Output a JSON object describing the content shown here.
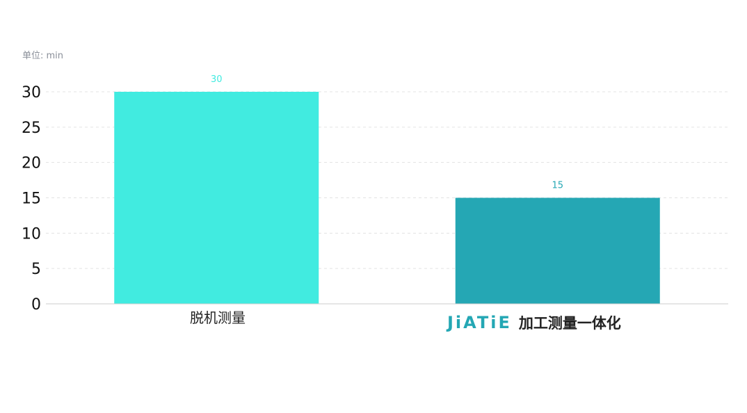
{
  "unit_label": "单位: min",
  "chart_data": {
    "type": "bar",
    "categories": [
      "脱机测量",
      "加工测量一体化"
    ],
    "category_logo": "JiATiE",
    "values": [
      30,
      15
    ],
    "colors": [
      "#41ebe0",
      "#25a7b4"
    ],
    "ylim": [
      0,
      30
    ],
    "yticks": [
      0,
      5,
      10,
      15,
      20,
      25,
      30
    ],
    "grid": true,
    "ylabel": "",
    "xlabel": ""
  }
}
